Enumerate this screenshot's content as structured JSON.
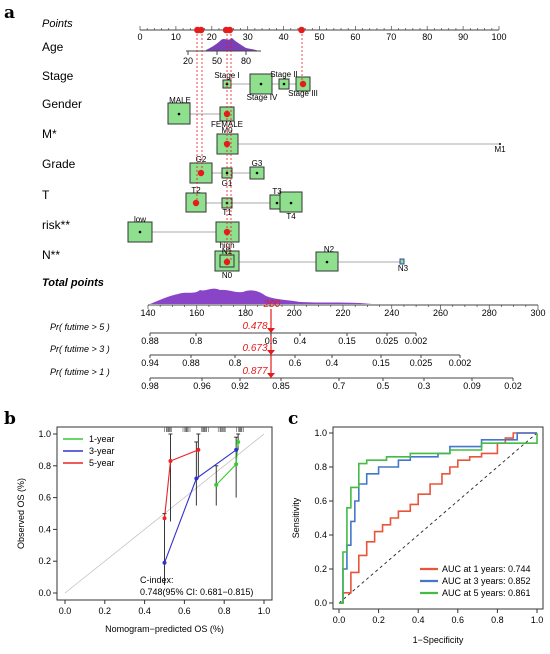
{
  "panels": {
    "a": "a",
    "b": "b",
    "c": "c"
  },
  "chart_data": [
    {
      "type": "nomogram",
      "points_axis": {
        "label": "Points",
        "ticks": [
          "0",
          "10",
          "20",
          "30",
          "40",
          "50",
          "60",
          "70",
          "80",
          "90",
          "100"
        ],
        "range": [
          0,
          100
        ],
        "markers": [
          16,
          17,
          24,
          25,
          45
        ]
      },
      "variables": [
        {
          "label": "Age",
          "ticks": [
            "20",
            "50",
            "80"
          ]
        },
        {
          "label": "Stage",
          "levels": [
            "Stage I",
            "Stage IV",
            "Stage II",
            "Stage III"
          ]
        },
        {
          "label": "Gender",
          "levels": [
            "MALE",
            "FEMALE"
          ]
        },
        {
          "label": "M*",
          "levels": [
            "M0",
            "M1"
          ]
        },
        {
          "label": "Grade",
          "levels": [
            "G2",
            "G1",
            "G3"
          ]
        },
        {
          "label": "T",
          "levels": [
            "T2",
            "T1",
            "T3",
            "T4"
          ]
        },
        {
          "label": "risk**",
          "levels": [
            "low",
            "high"
          ]
        },
        {
          "label": "N**",
          "levels": [
            "N1",
            "N0",
            "N2",
            "N3"
          ]
        }
      ],
      "total_points": {
        "label": "Total points",
        "ticks": [
          "140",
          "160",
          "180",
          "200",
          "220",
          "240",
          "260",
          "280",
          "300"
        ],
        "range": [
          140,
          300
        ],
        "value": "200"
      },
      "probabilities": [
        {
          "label": "Pr( futime > 5 )",
          "ticks": [
            "0.88",
            "0.8",
            "0.6",
            "0.4",
            "0.15",
            "0.025",
            "0.002"
          ],
          "value": "0.478"
        },
        {
          "label": "Pr( futime > 3 )",
          "ticks": [
            "0.94",
            "0.88",
            "0.8",
            "0.6",
            "0.4",
            "0.15",
            "0.025",
            "0.002"
          ],
          "value": "0.673"
        },
        {
          "label": "Pr( futime > 1 )",
          "ticks": [
            "0.98",
            "0.96",
            "0.92",
            "0.85",
            "0.7",
            "0.5",
            "0.3",
            "0.09",
            "0.02"
          ],
          "value": "0.877"
        }
      ]
    },
    {
      "type": "line",
      "xlabel": "Nomogram−predicted OS (%)",
      "ylabel": "Observed OS (%)",
      "xlim": [
        0,
        1
      ],
      "ylim": [
        0,
        1
      ],
      "ticks": [
        "0.0",
        "0.2",
        "0.4",
        "0.6",
        "0.8",
        "1.0"
      ],
      "legend": "top-left",
      "series": [
        {
          "name": "1-year",
          "color": "#33cc33",
          "x": [
            0.76,
            0.86,
            0.87
          ],
          "y": [
            0.68,
            0.81,
            0.95
          ]
        },
        {
          "name": "3-year",
          "color": "#3333cc",
          "x": [
            0.5,
            0.66,
            0.86
          ],
          "y": [
            0.19,
            0.72,
            0.9
          ]
        },
        {
          "name": "5-year",
          "color": "#ee2222",
          "x": [
            0.5,
            0.53,
            0.67
          ],
          "y": [
            0.47,
            0.83,
            0.9
          ]
        }
      ],
      "annotation": {
        "line1": "C-index:",
        "line2": "0.748(95% CI: 0.681−0.815)"
      }
    },
    {
      "type": "line",
      "xlabel": "1−Specificity",
      "ylabel": "Sensitivity",
      "xlim": [
        0,
        1
      ],
      "ylim": [
        0,
        1
      ],
      "ticks": [
        "0.0",
        "0.2",
        "0.4",
        "0.6",
        "0.8",
        "1.0"
      ],
      "legend": "bottom-right",
      "series": [
        {
          "name": "AUC at 1 years: 0.744",
          "color": "#e8553a",
          "x": [
            0,
            0.02,
            0.02,
            0.06,
            0.06,
            0.1,
            0.1,
            0.14,
            0.14,
            0.18,
            0.18,
            0.22,
            0.22,
            0.26,
            0.26,
            0.3,
            0.3,
            0.36,
            0.36,
            0.4,
            0.4,
            0.46,
            0.46,
            0.52,
            0.52,
            0.56,
            0.56,
            0.6,
            0.6,
            0.66,
            0.66,
            0.72,
            0.72,
            0.8,
            0.8,
            0.84,
            0.84,
            0.88,
            0.88,
            1.0
          ],
          "y": [
            0,
            0,
            0.06,
            0.06,
            0.18,
            0.18,
            0.28,
            0.28,
            0.36,
            0.36,
            0.42,
            0.42,
            0.46,
            0.46,
            0.5,
            0.5,
            0.54,
            0.54,
            0.58,
            0.58,
            0.64,
            0.64,
            0.7,
            0.7,
            0.76,
            0.76,
            0.8,
            0.8,
            0.84,
            0.84,
            0.86,
            0.86,
            0.88,
            0.88,
            0.94,
            0.94,
            0.97,
            0.97,
            1.0,
            1.0
          ]
        },
        {
          "name": "AUC at 3 years: 0.852",
          "color": "#4477cc",
          "x": [
            0,
            0.02,
            0.02,
            0.04,
            0.04,
            0.06,
            0.06,
            0.08,
            0.08,
            0.1,
            0.1,
            0.14,
            0.14,
            0.2,
            0.2,
            0.3,
            0.3,
            0.36,
            0.36,
            0.5,
            0.5,
            0.56,
            0.56,
            0.72,
            0.72,
            0.9,
            0.9,
            1.0
          ],
          "y": [
            0,
            0,
            0.2,
            0.2,
            0.34,
            0.34,
            0.48,
            0.48,
            0.6,
            0.6,
            0.7,
            0.7,
            0.76,
            0.76,
            0.8,
            0.8,
            0.84,
            0.84,
            0.86,
            0.86,
            0.88,
            0.88,
            0.92,
            0.92,
            0.96,
            0.96,
            1.0,
            1.0
          ]
        },
        {
          "name": "AUC at 5 years: 0.861",
          "color": "#44bb44",
          "x": [
            0,
            0.02,
            0.02,
            0.04,
            0.04,
            0.06,
            0.06,
            0.1,
            0.1,
            0.14,
            0.14,
            0.24,
            0.24,
            0.36,
            0.36,
            0.56,
            0.56,
            0.72,
            0.72,
            1.0,
            1.0
          ],
          "y": [
            0,
            0,
            0.3,
            0.3,
            0.56,
            0.56,
            0.68,
            0.68,
            0.82,
            0.82,
            0.84,
            0.84,
            0.86,
            0.86,
            0.88,
            0.88,
            0.9,
            0.9,
            0.94,
            0.94,
            1.0
          ]
        }
      ]
    }
  ]
}
